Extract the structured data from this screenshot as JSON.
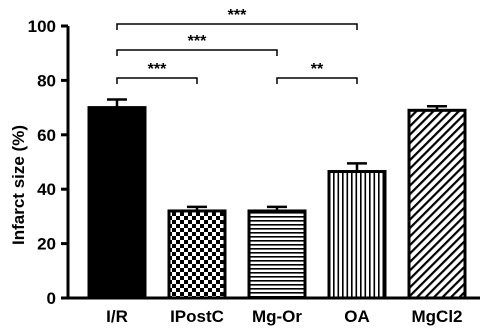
{
  "chart_data": {
    "type": "bar",
    "ylabel": "Infarct size (%)",
    "xlabel": "",
    "ylim": [
      0,
      100
    ],
    "yticks": [
      0,
      20,
      40,
      60,
      80,
      100
    ],
    "grid": false,
    "bars": [
      {
        "category": "I/R",
        "value": 70,
        "error": 3,
        "pattern": "solid"
      },
      {
        "category": "IPostC",
        "value": 32,
        "error": 1.5,
        "pattern": "checker"
      },
      {
        "category": "Mg-Or",
        "value": 32,
        "error": 1.5,
        "pattern": "horizontal-stripes"
      },
      {
        "category": "OA",
        "value": 46.5,
        "error": 3,
        "pattern": "vertical-stripes"
      },
      {
        "category": "MgCl2",
        "value": 69,
        "error": 1.5,
        "pattern": "diagonal-stripes"
      }
    ],
    "significance": [
      {
        "from": 0,
        "to": 1,
        "label": "***"
      },
      {
        "from": 2,
        "to": 3,
        "label": "**"
      },
      {
        "from": 0,
        "to": 2,
        "label": "***"
      },
      {
        "from": 0,
        "to": 3,
        "label": "***"
      }
    ]
  }
}
